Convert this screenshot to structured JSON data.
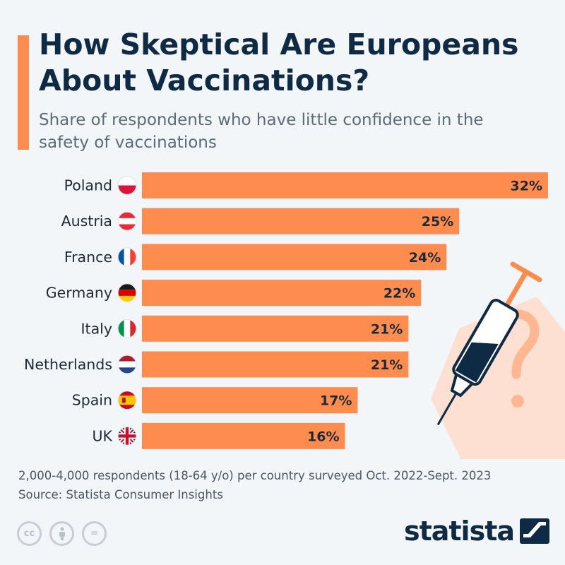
{
  "header": {
    "title": "How Skeptical Are Europeans About Vaccinations?",
    "subtitle": "Share of respondents who have little confidence in the safety of vaccinations"
  },
  "chart_data": {
    "type": "bar",
    "orientation": "horizontal",
    "title": "How Skeptical Are Europeans About Vaccinations?",
    "subtitle": "Share of respondents who have little confidence in the safety of vaccinations",
    "categories": [
      "Poland",
      "Austria",
      "France",
      "Germany",
      "Italy",
      "Netherlands",
      "Spain",
      "UK"
    ],
    "values": [
      32,
      25,
      24,
      22,
      21,
      21,
      17,
      16
    ],
    "labels": [
      "32%",
      "25%",
      "24%",
      "22%",
      "21%",
      "21%",
      "17%",
      "16%"
    ],
    "flags": [
      "poland-flag-icon",
      "austria-flag-icon",
      "france-flag-icon",
      "germany-flag-icon",
      "italy-flag-icon",
      "netherlands-flag-icon",
      "spain-flag-icon",
      "uk-flag-icon"
    ],
    "unit": "%",
    "xlim": [
      0,
      32
    ],
    "grid": false,
    "bar_color": "#ff8c4f"
  },
  "illustration": {
    "icon": "syringe-question-icon"
  },
  "footer": {
    "note": "2,000-4,000 respondents (18-64 y/o) per country surveyed Oct. 2022-Sept. 2023",
    "source": "Source: Statista Consumer Insights"
  },
  "license": {
    "icons": [
      "cc-icon",
      "by-icon",
      "nd-icon"
    ],
    "cc_text": "cc",
    "nd_text": "="
  },
  "brand": {
    "name": "statista",
    "logo_icon": "statista-logo-icon"
  },
  "colors": {
    "accent": "#ff8c4f",
    "title": "#0f2a44",
    "background": "#f3f6f9",
    "subtitle": "#5c6b78",
    "illustration_bg": "#fde0d2",
    "illustration_mark": "#ffb791"
  }
}
